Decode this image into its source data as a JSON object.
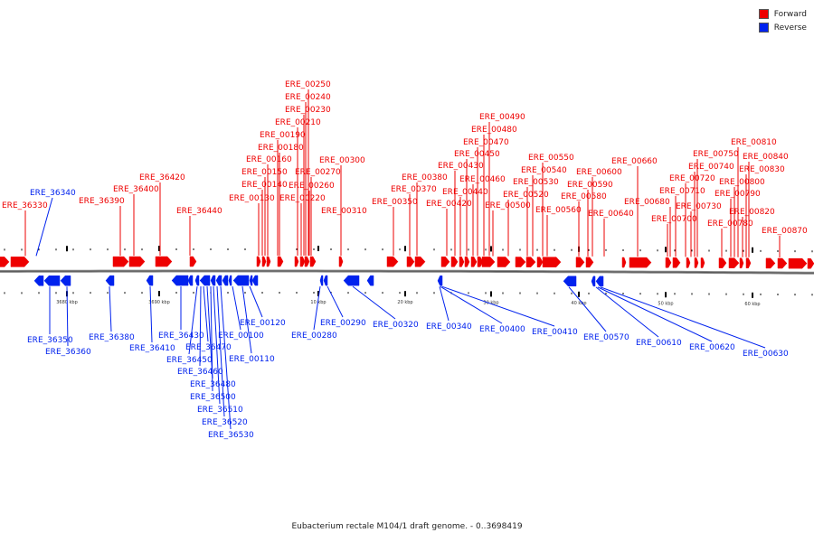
{
  "legend": {
    "forward_label": "Forward",
    "reverse_label": "Reverse",
    "forward_color": "#ee0000",
    "reverse_color": "#0022ee"
  },
  "footer": {
    "title": "Eubacterium rectale M104/1 draft genome. - 0..3698419"
  },
  "axis": {
    "tick_labels": [
      "3680 kbp",
      "3690 kbp",
      "10 kbp",
      "20 kbp",
      "30 kbp",
      "40 kbp",
      "50 kbp",
      "60 kbp"
    ]
  },
  "genes": {
    "forward": [
      "ERE_36330",
      "ERE_36390",
      "ERE_36400",
      "ERE_36420",
      "ERE_36440",
      "ERE_00130",
      "ERE_00140",
      "ERE_00150",
      "ERE_00160",
      "ERE_00180",
      "ERE_00190",
      "ERE_00210",
      "ERE_00220",
      "ERE_00230",
      "ERE_00240",
      "ERE_00250",
      "ERE_00260",
      "ERE_00270",
      "ERE_00300",
      "ERE_00310",
      "ERE_00350",
      "ERE_00370",
      "ERE_00380",
      "ERE_00420",
      "ERE_00430",
      "ERE_00440",
      "ERE_00450",
      "ERE_00460",
      "ERE_00470",
      "ERE_00480",
      "ERE_00490",
      "ERE_00500",
      "ERE_00520",
      "ERE_00530",
      "ERE_00540",
      "ERE_00550",
      "ERE_00560",
      "ERE_00580",
      "ERE_00590",
      "ERE_00600",
      "ERE_00640",
      "ERE_00660",
      "ERE_00680",
      "ERE_00700",
      "ERE_00710",
      "ERE_00720",
      "ERE_00730",
      "ERE_00740",
      "ERE_00750",
      "ERE_00780",
      "ERE_00790",
      "ERE_00800",
      "ERE_00810",
      "ERE_00820",
      "ERE_00830",
      "ERE_00840",
      "ERE_00870"
    ],
    "reverse": [
      "ERE_36340",
      "ERE_36350",
      "ERE_36360",
      "ERE_36380",
      "ERE_36410",
      "ERE_36430",
      "ERE_36450",
      "ERE_36460",
      "ERE_36470",
      "ERE_36480",
      "ERE_36500",
      "ERE_36510",
      "ERE_36520",
      "ERE_36530",
      "ERE_00100",
      "ERE_00110",
      "ERE_00120",
      "ERE_00280",
      "ERE_00290",
      "ERE_00320",
      "ERE_00340",
      "ERE_00400",
      "ERE_00410",
      "ERE_00570",
      "ERE_00610",
      "ERE_00620",
      "ERE_00630"
    ]
  }
}
